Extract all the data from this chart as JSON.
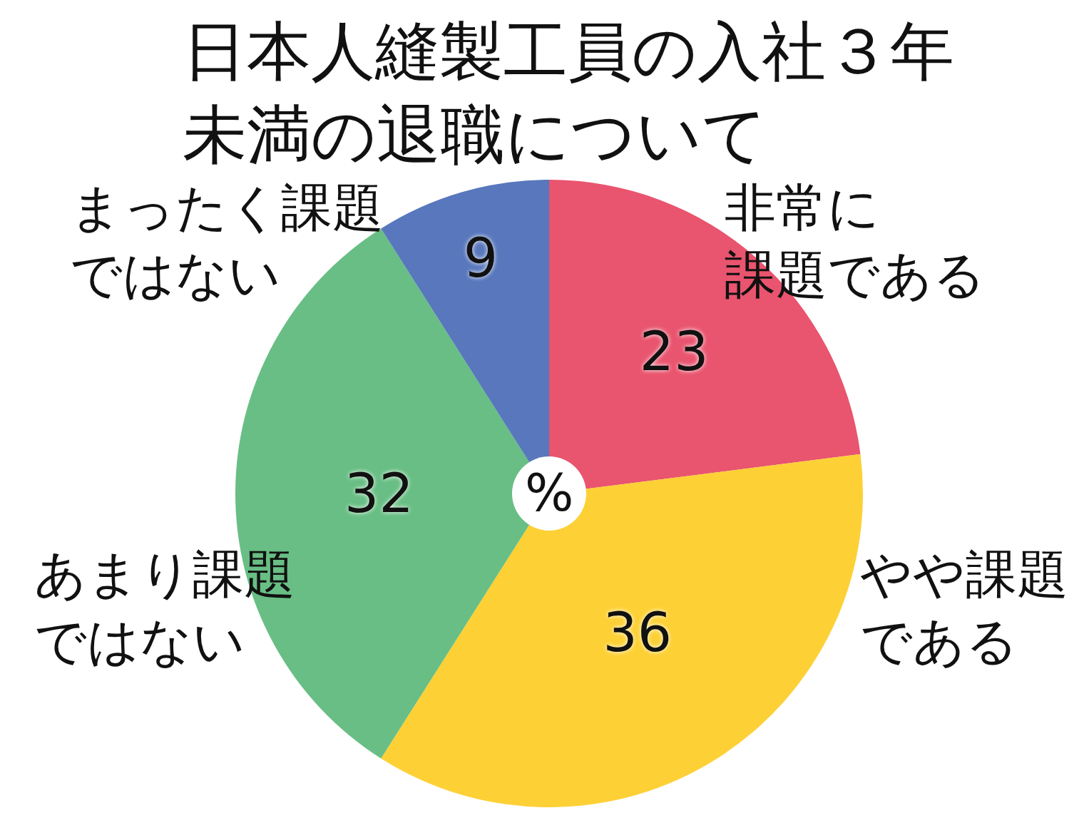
{
  "chart_data": {
    "type": "pie",
    "title": "日本人縫製工員の入社３年未満の退職について",
    "categories": [
      "非常に課題である",
      "やや課題である",
      "あまり課題ではない",
      "まったく課題ではない"
    ],
    "values": [
      23,
      36,
      32,
      9
    ],
    "colors": [
      "#e9546e",
      "#fdd035",
      "#68be84",
      "#5877bc"
    ],
    "data_labels": true,
    "legend": false,
    "annotations": [
      "%"
    ]
  }
}
